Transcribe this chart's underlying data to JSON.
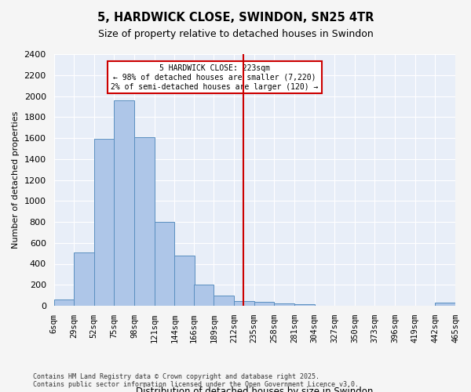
{
  "title": "5, HARDWICK CLOSE, SWINDON, SN25 4TR",
  "subtitle": "Size of property relative to detached houses in Swindon",
  "xlabel": "Distribution of detached houses by size in Swindon",
  "ylabel": "Number of detached properties",
  "footer": "Contains HM Land Registry data © Crown copyright and database right 2025.\nContains public sector information licensed under the Open Government Licence v3.0.",
  "bar_color": "#aec6e8",
  "bar_edge_color": "#5a8fc0",
  "background_color": "#e8eef8",
  "grid_color": "#ffffff",
  "annotation_text": "5 HARDWICK CLOSE: 223sqm\n← 98% of detached houses are smaller (7,220)\n2% of semi-detached houses are larger (120) →",
  "vline_x": 223,
  "vline_color": "#cc0000",
  "annotation_box_color": "#cc0000",
  "bin_edges": [
    6,
    29,
    52,
    75,
    98,
    121,
    144,
    166,
    189,
    212,
    235,
    258,
    281,
    304,
    327,
    350,
    373,
    396,
    419,
    442,
    465
  ],
  "bar_heights": [
    60,
    510,
    1590,
    1960,
    1610,
    800,
    480,
    200,
    100,
    45,
    35,
    25,
    15,
    0,
    0,
    0,
    0,
    0,
    0,
    30
  ],
  "ylim": [
    0,
    2400
  ],
  "yticks": [
    0,
    200,
    400,
    600,
    800,
    1000,
    1200,
    1400,
    1600,
    1800,
    2000,
    2200,
    2400
  ]
}
